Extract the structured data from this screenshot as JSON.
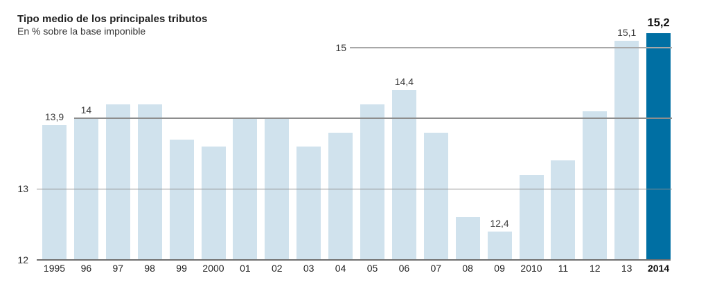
{
  "chart_data": {
    "type": "bar",
    "title": "Tipo medio de los principales tributos",
    "subtitle": "En % sobre la base imponible",
    "unit": "%",
    "categories": [
      "1995",
      "96",
      "97",
      "98",
      "99",
      "2000",
      "01",
      "02",
      "03",
      "04",
      "05",
      "06",
      "07",
      "08",
      "09",
      "2010",
      "11",
      "12",
      "13",
      "2014"
    ],
    "values": [
      13.9,
      14.0,
      14.2,
      14.2,
      13.7,
      13.6,
      14.0,
      14.0,
      13.6,
      13.8,
      14.2,
      14.4,
      13.8,
      12.6,
      12.4,
      13.2,
      13.4,
      14.1,
      15.1,
      15.2
    ],
    "bar_labels": [
      "13,9",
      "14",
      null,
      null,
      null,
      null,
      null,
      null,
      null,
      null,
      null,
      "14,4",
      null,
      null,
      "12,4",
      null,
      null,
      null,
      "15,1",
      "15,2"
    ],
    "highlight_index": 19,
    "highlight_category": "2014",
    "ylim": [
      12,
      15.35
    ],
    "yticks": [
      12,
      13,
      14,
      15
    ],
    "ytick_labels_shown": [
      "12",
      "13",
      "15"
    ],
    "grid": "partial-horizontal",
    "legend": "none",
    "colors": {
      "bar": "#d0e2ed",
      "bar_highlight": "#006fa3",
      "gridline": "#8d8d8d",
      "gridline_light": "#a8a8a8",
      "baseline": "#6f6f6f",
      "text": "#333333"
    }
  }
}
